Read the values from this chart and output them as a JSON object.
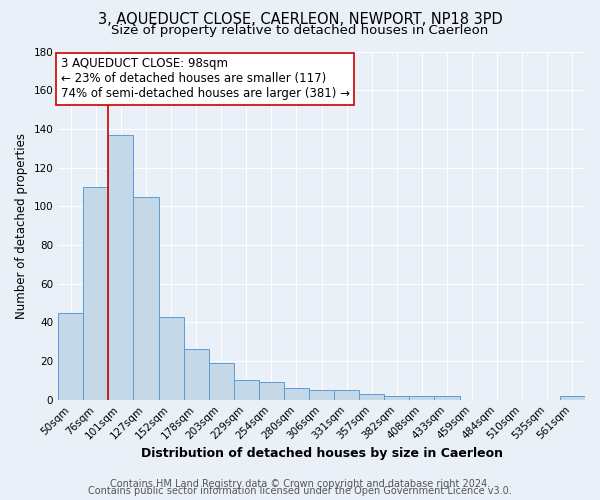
{
  "title": "3, AQUEDUCT CLOSE, CAERLEON, NEWPORT, NP18 3PD",
  "subtitle": "Size of property relative to detached houses in Caerleon",
  "xlabel": "Distribution of detached houses by size in Caerleon",
  "ylabel": "Number of detached properties",
  "bar_labels": [
    "50sqm",
    "76sqm",
    "101sqm",
    "127sqm",
    "152sqm",
    "178sqm",
    "203sqm",
    "229sqm",
    "254sqm",
    "280sqm",
    "306sqm",
    "331sqm",
    "357sqm",
    "382sqm",
    "408sqm",
    "433sqm",
    "459sqm",
    "484sqm",
    "510sqm",
    "535sqm",
    "561sqm"
  ],
  "bar_values": [
    45,
    110,
    137,
    105,
    43,
    26,
    19,
    10,
    9,
    6,
    5,
    5,
    3,
    2,
    2,
    2,
    0,
    0,
    0,
    0,
    2
  ],
  "bar_color": "#c5d8e8",
  "bar_edge_color": "#5b9bd5",
  "bar_width": 1.0,
  "vline_index": 2,
  "vline_color": "#cc0000",
  "annotation_line1": "3 AQUEDUCT CLOSE: 98sqm",
  "annotation_line2": "← 23% of detached houses are smaller (117)",
  "annotation_line3": "74% of semi-detached houses are larger (381) →",
  "annotation_box_color": "#ffffff",
  "annotation_box_edge_color": "#cc0000",
  "ylim": [
    0,
    180
  ],
  "yticks": [
    0,
    20,
    40,
    60,
    80,
    100,
    120,
    140,
    160,
    180
  ],
  "background_color": "#eaf0f8",
  "plot_bg_color": "#eaf0f8",
  "footer_line1": "Contains HM Land Registry data © Crown copyright and database right 2024.",
  "footer_line2": "Contains public sector information licensed under the Open Government Licence v3.0.",
  "title_fontsize": 10.5,
  "subtitle_fontsize": 9.5,
  "xlabel_fontsize": 9,
  "ylabel_fontsize": 8.5,
  "annotation_fontsize": 8.5,
  "tick_fontsize": 7.5,
  "footer_fontsize": 7
}
